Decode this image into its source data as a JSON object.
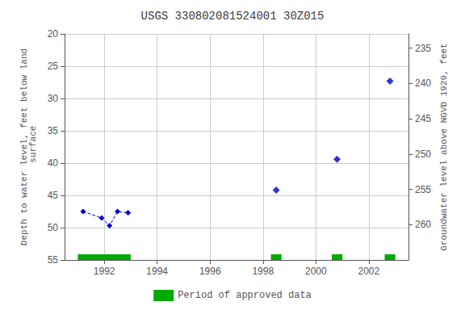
{
  "chart_data": {
    "type": "line",
    "title": "USGS 330802081524001 30Z015",
    "ylabel": "Depth to water level, feet below land\n surface",
    "y2label": "Groundwater level above NGVD 1929, feet",
    "xlim": [
      1990.5,
      2003.5
    ],
    "xticks": [
      1992,
      1994,
      1996,
      1998,
      2000,
      2002
    ],
    "ylim": [
      55,
      20
    ],
    "yticks": [
      20,
      25,
      30,
      35,
      40,
      45,
      50,
      55
    ],
    "y2lim": [
      265,
      233
    ],
    "y2ticks": [
      260,
      255,
      250,
      245,
      240,
      235
    ],
    "grid": true,
    "legend": "bottom",
    "series": [
      {
        "type": "line",
        "color": "#0000cc",
        "marker": "diamond",
        "line_style": "dashed",
        "x": [
          1991.2,
          1991.9,
          1992.2,
          1992.5,
          1992.9
        ],
        "values": [
          47.5,
          48.5,
          49.7,
          47.5,
          47.7
        ]
      },
      {
        "type": "scatter",
        "color": "#0000cc",
        "marker": "diamond",
        "x": [
          1998.5,
          2000.8,
          2002.8
        ],
        "values": [
          44.2,
          39.4,
          27.3
        ]
      },
      {
        "type": "interval",
        "name": "Period of approved data",
        "color": "#00aa00",
        "ranges": [
          [
            1991.0,
            1993.0
          ],
          [
            1998.3,
            1998.7
          ],
          [
            2000.6,
            2001.0
          ],
          [
            2002.6,
            2003.0
          ]
        ]
      }
    ]
  }
}
